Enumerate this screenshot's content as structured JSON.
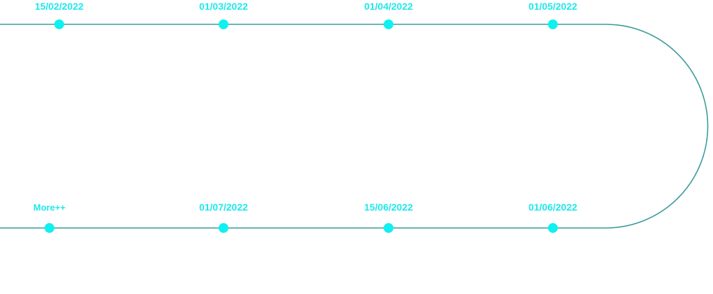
{
  "colors": {
    "track": "#3a9a9a",
    "node": "#0ff0f0",
    "label": "#1de8ec"
  },
  "timeline": {
    "top_row": [
      {
        "date": "15/02/2022"
      },
      {
        "date": "01/03/2022"
      },
      {
        "date": "01/04/2022"
      },
      {
        "date": "01/05/2022"
      }
    ],
    "bottom_row": [
      {
        "date": "More++"
      },
      {
        "date": "01/07/2022"
      },
      {
        "date": "15/06/2022"
      },
      {
        "date": "01/06/2022"
      }
    ]
  }
}
